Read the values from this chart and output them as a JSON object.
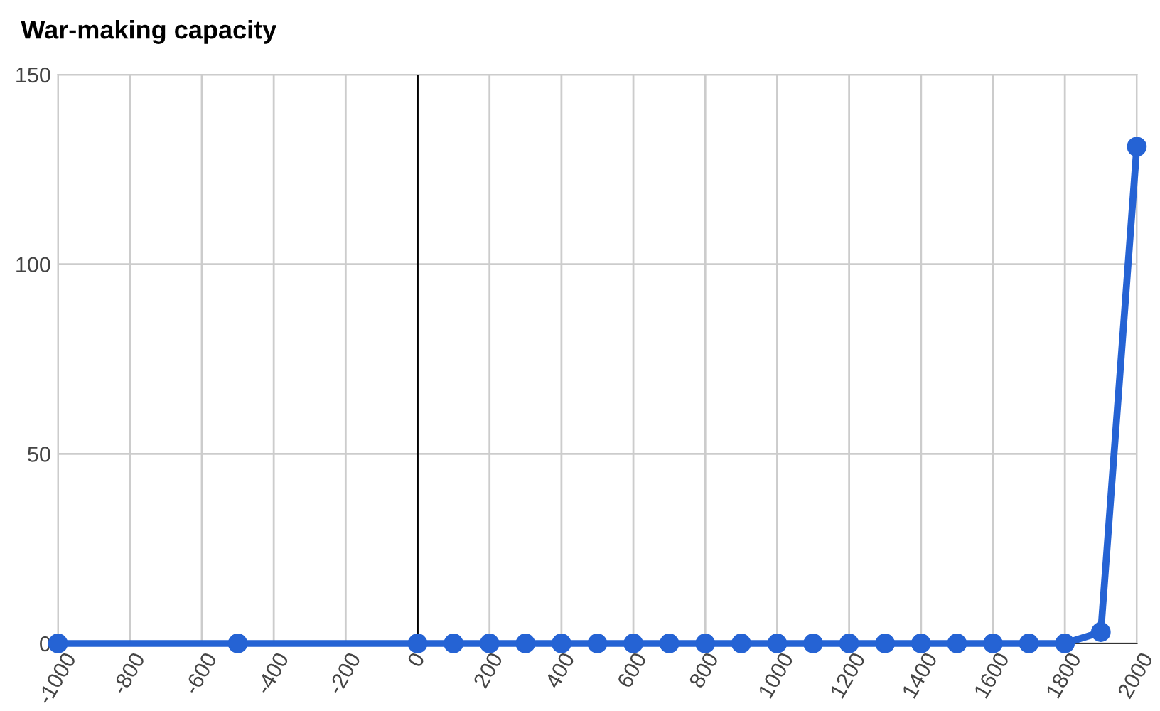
{
  "chart_data": {
    "type": "line",
    "title": "War-making capacity",
    "x": [
      -1000,
      -500,
      0,
      100,
      200,
      300,
      400,
      500,
      600,
      700,
      800,
      900,
      1000,
      1100,
      1200,
      1300,
      1400,
      1500,
      1600,
      1700,
      1800,
      1900,
      2000
    ],
    "series": [
      {
        "color": "#2563d4",
        "values": [
          0,
          0,
          0,
          0,
          0,
          0,
          0,
          0,
          0,
          0,
          0,
          0,
          0,
          0,
          0,
          0,
          0,
          0,
          0,
          0,
          0,
          3,
          131
        ]
      }
    ],
    "xlim": [
      -1000,
      2000
    ],
    "xticks": [
      -1000,
      -800,
      -600,
      -400,
      -200,
      0,
      200,
      400,
      600,
      800,
      1000,
      1200,
      1400,
      1600,
      1800,
      2000
    ],
    "ylim": [
      0,
      150
    ],
    "yticks": [
      0,
      50,
      100,
      150
    ],
    "ref_lines": [
      {
        "axis": "x",
        "value": 0,
        "color": "#000000"
      }
    ],
    "grid": true,
    "marker": "circle",
    "line_style": "solid",
    "legend": false
  }
}
